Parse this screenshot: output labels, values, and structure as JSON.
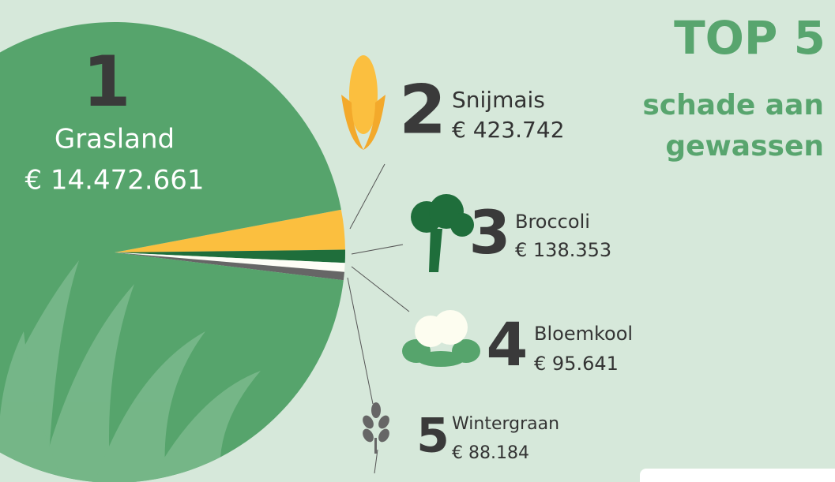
{
  "chart_data": {
    "type": "pie",
    "title": "TOP 5",
    "subtitle": "schade aan gewassen",
    "ranks": [
      1,
      2,
      3,
      4,
      5
    ],
    "categories": [
      "Grasland",
      "Snijmais",
      "Broccoli",
      "Bloemkool",
      "Wintergraan"
    ],
    "values": [
      14472661,
      423742,
      138353,
      95641,
      88184
    ],
    "value_labels": [
      "€ 14.472.661",
      "€ 423.742",
      "€ 138.353",
      "€ 95.641",
      "€ 88.184"
    ],
    "colors": [
      "#56a46c",
      "#fbbf3f",
      "#1f6e3b",
      "#fdfdf6",
      "#666666"
    ]
  }
}
